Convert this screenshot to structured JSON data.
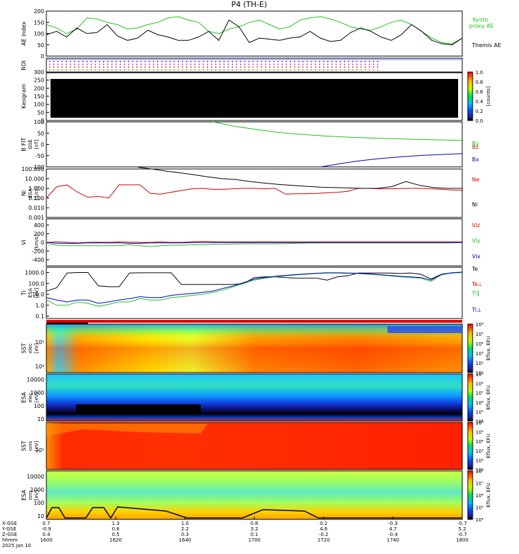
{
  "title": "P4 (TH-E)",
  "colors": {
    "kyoto": "#20c020",
    "themis_ae": "#000000",
    "bz": "#d00000",
    "by": "#20c020",
    "bx": "#0000c0",
    "ne": "#d00000",
    "ni": "#000000",
    "vz": "#d00000",
    "vy": "#20c020",
    "vx": "#0000c0",
    "te": "#000000",
    "tperp": "#d00000",
    "tpar": "#20c020",
    "tperp_blue": "#0000c0"
  },
  "chart_data": {
    "type": "line",
    "time_axis": {
      "ticks": [
        "1600",
        "1620",
        "1640",
        "1700",
        "1720",
        "1740",
        "1800"
      ],
      "row_labels": [
        "X-GSE",
        "Y-GSE",
        "Z-GSE",
        "hhmm",
        "2025 Jan 10"
      ],
      "rows": [
        [
          "0.7",
          "1.3",
          "1.0",
          "0.8",
          "0.2",
          "-0.3",
          "-0.7"
        ],
        [
          "-0.9",
          "0.6",
          "2.2",
          "3.2",
          "4.6",
          "4.7",
          "5.2"
        ],
        [
          "0.4",
          "0.5",
          "0.3",
          "0.1",
          "-0.2",
          "-0.4",
          "-0.7"
        ]
      ]
    },
    "panels": {
      "ae": {
        "ylabel": "AE index",
        "ylim": [
          0,
          200
        ],
        "yticks": [
          "200",
          "150",
          "100",
          "50",
          "0"
        ],
        "series": [
          {
            "name": "Kyoto",
            "name2": "proxy AE",
            "color": "#20c020",
            "values": [
              140,
              125,
              100,
              120,
              170,
              165,
              150,
              140,
              120,
              125,
              140,
              150,
              170,
              175,
              160,
              150,
              110,
              100,
              120,
              130,
              150,
              160,
              140,
              120,
              130,
              160,
              170,
              175,
              165,
              150,
              130,
              120,
              115,
              130,
              150,
              160,
              140,
              110,
              80,
              60,
              55,
              80
            ]
          },
          {
            "name": "Themis AE",
            "color": "#000000",
            "values": [
              95,
              110,
              85,
              125,
              100,
              105,
              140,
              90,
              70,
              80,
              115,
              95,
              85,
              70,
              70,
              85,
              110,
              70,
              160,
              130,
              60,
              80,
              75,
              70,
              80,
              85,
              110,
              80,
              65,
              70,
              105,
              125,
              110,
              85,
              70,
              95,
              140,
              110,
              70,
              55,
              50,
              80
            ]
          }
        ]
      },
      "roi": {
        "ylabel": "ROI"
      },
      "keogram": {
        "ylabel": "Keogram",
        "ylim": [
          0,
          300
        ],
        "yticks": [
          "300",
          "250",
          "200",
          "150",
          "100",
          "50",
          "0"
        ],
        "colorbar": {
          "label": "[counts]",
          "ticks": [
            "1.0",
            "0.8",
            "0.6",
            "0.4",
            "0.2",
            "0.0"
          ]
        }
      },
      "bfield": {
        "ylabel": "B FIT",
        "ylabel2": "GSE",
        "unit": "[nT]",
        "ylim": [
          -100,
          100
        ],
        "yticks": [
          "100",
          "50",
          "0",
          "-50",
          "-100"
        ],
        "series": [
          {
            "name": "Bz",
            "color": "#d00000",
            "values": []
          },
          {
            "name": "By",
            "color": "#20c020",
            "x_start": 0.4,
            "values": [
              100,
              80,
              65,
              52,
              44,
              37,
              32,
              28,
              25,
              22,
              20,
              18
            ]
          },
          {
            "name": "Bx",
            "color": "#0000c0",
            "x_start": 0.66,
            "values": [
              -100,
              -85,
              -72,
              -62,
              -55,
              -49,
              -45,
              -41
            ]
          }
        ]
      },
      "density": {
        "ylabel": "Ni",
        "ylabel2": "ESA",
        "unit": "[1/cc]",
        "log": true,
        "ylim": [
          0.001,
          100
        ],
        "yticks": [
          "100.000",
          "10.000",
          "1.000",
          "0.100",
          "0.010",
          "0.001"
        ],
        "series": [
          {
            "name": "Ne",
            "color": "#d00000",
            "values": [
              0.1,
              1.5,
              2.2,
              0.4,
              0.12,
              0.15,
              0.1,
              2.3,
              2.3,
              2.3,
              0.3,
              0.25,
              0.4,
              0.6,
              0.9,
              1.0,
              0.8,
              0.8,
              0.9,
              1.0,
              1.0,
              0.9,
              1.0,
              0.25,
              0.28,
              0.28,
              0.3,
              0.35,
              0.4,
              0.5,
              1.0,
              1.0,
              0.9,
              0.9,
              0.95,
              1.0,
              1.0,
              0.9,
              0.8,
              0.7,
              0.6
            ]
          },
          {
            "name": "Ni",
            "color": "#000000",
            "x_start": 0.22,
            "values": [
              150,
              100,
              60,
              40,
              25,
              15,
              10,
              8,
              5,
              3.5,
              2.5,
              2,
              1.6,
              1.3,
              1.2,
              1.1,
              1.0,
              1.0,
              1.5,
              5,
              2,
              1.2,
              1.0,
              1.0
            ]
          }
        ]
      },
      "velocity": {
        "ylabel": "Vi",
        "unit": "[km/s]",
        "ylim": [
          -500,
          500
        ],
        "yticks": [
          "400",
          "200",
          "0",
          "-200",
          "-400"
        ],
        "series": [
          {
            "name": "Viz",
            "color": "#d00000",
            "values": [
              0,
              10,
              0,
              -10,
              0,
              5,
              0,
              10,
              5,
              0,
              0,
              10,
              0,
              0,
              10,
              20,
              15,
              10,
              10,
              10,
              10,
              15,
              10,
              10,
              10,
              10,
              10,
              10,
              10,
              10,
              10,
              10,
              10,
              10,
              10,
              10,
              10,
              10,
              10,
              10,
              10
            ]
          },
          {
            "name": "Viy",
            "color": "#20c020",
            "values": [
              -20,
              -60,
              -70,
              -70,
              -70,
              -70,
              -70,
              -70,
              -50,
              -70,
              -90,
              -70,
              -60,
              -60,
              -50,
              -50,
              -40,
              -40,
              -35,
              -30,
              -30,
              -30,
              -30,
              -25,
              -20,
              -15,
              -10,
              -10,
              -10,
              -10,
              -10,
              -10,
              -10,
              -10,
              -10,
              -10,
              -10,
              -10,
              -10,
              -10,
              -5
            ]
          },
          {
            "name": "Vix",
            "color": "#0000c0",
            "values": [
              0,
              -20,
              -20,
              -20,
              -10,
              -10,
              -10,
              -10,
              -20,
              -20,
              -10,
              -10,
              -10,
              -10,
              -5,
              -5,
              -5,
              -5,
              -5,
              -5,
              -5,
              -5,
              -5,
              -5,
              -5,
              -5,
              -5,
              -5,
              -5,
              -5,
              -5,
              -5,
              -5,
              -5,
              -5,
              -5,
              -5,
              -5,
              -5,
              -5,
              -5
            ]
          }
        ]
      },
      "temperature": {
        "ylabel": "Ti",
        "ylabel2": "ESA",
        "unit": "[eV]",
        "log": true,
        "ylim": [
          0.06,
          3000
        ],
        "yticks": [
          "1000.0",
          "100.0",
          "10.0",
          "1.0",
          "0.1"
        ],
        "series": [
          {
            "name": "Te",
            "color": "#000000",
            "values": [
              20,
              40,
              900,
              1000,
              1000,
              60,
              50,
              50,
              900,
              950,
              950,
              950,
              950,
              80,
              80,
              80,
              80,
              80,
              80,
              100,
              350,
              400,
              400,
              350,
              300,
              300,
              300,
              200,
              400,
              500,
              900,
              900,
              900,
              900,
              800,
              900,
              700,
              250,
              700,
              900,
              1000
            ]
          },
          {
            "name": "Te⊥",
            "color": "#d00000",
            "values": []
          },
          {
            "name": "Ti∥",
            "color": "#20c020",
            "values": [
              3,
              1,
              1,
              2,
              1.5,
              0.8,
              1.2,
              2,
              2,
              4,
              3,
              3,
              5,
              6,
              8,
              10,
              15,
              25,
              50,
              100,
              200,
              300,
              400,
              500,
              600,
              700,
              800,
              900,
              900,
              850,
              800,
              700,
              600,
              500,
              400,
              350,
              300,
              150,
              600,
              900,
              1000
            ]
          },
          {
            "name": "Ti⊥",
            "color": "#0000c0",
            "values": [
              5,
              3,
              2,
              3,
              3,
              1.5,
              2,
              3,
              4,
              6,
              5,
              5,
              8,
              10,
              12,
              15,
              20,
              35,
              60,
              120,
              250,
              350,
              450,
              550,
              650,
              750,
              850,
              950,
              950,
              900,
              850,
              750,
              650,
              550,
              450,
              400,
              350,
              200,
              700,
              950,
              1100
            ]
          }
        ]
      },
      "sst_e": {
        "ylabel": "SST",
        "ylabel2": "elec",
        "unit": "[eV]",
        "yticks": [
          "10⁵",
          "10⁴"
        ],
        "colorbar": {
          "label": "Eflux, EFU",
          "ticks": [
            "10⁶",
            "10⁵",
            "10⁴",
            "10³",
            "10²",
            "10¹"
          ]
        }
      },
      "esa_e": {
        "ylabel": "ESA",
        "ylabel2": "elec",
        "unit": "[eV]",
        "yticks": [
          "10000",
          "1000",
          "100",
          "10"
        ],
        "colorbar": {
          "label": "Eflux, EFU",
          "ticks": [
            "10⁹",
            "10⁸",
            "10⁷",
            "10⁶",
            "10⁵",
            "10⁴"
          ]
        }
      },
      "sst_i": {
        "ylabel": "SST",
        "ylabel2": "ions",
        "unit": "[eV]",
        "yticks": [
          "10⁵"
        ],
        "colorbar": {
          "label": "Eflux, EFU",
          "ticks": [
            "10⁶",
            "10⁵",
            "10⁴",
            "10³",
            "10²",
            "10¹"
          ]
        }
      },
      "esa_i": {
        "ylabel": "ESA",
        "ylabel2": "ions",
        "unit": "[eV]",
        "yticks": [
          "10000",
          "1000",
          "100",
          "10"
        ],
        "colorbar": {
          "label": "Eflux, EFU",
          "ticks": [
            "10⁸",
            "10⁷",
            "10⁶",
            "10⁵",
            "10⁴"
          ]
        }
      }
    }
  }
}
